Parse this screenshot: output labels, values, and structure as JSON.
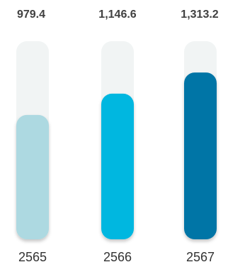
{
  "chart_data": {
    "type": "bar",
    "categories": [
      "2565",
      "2566",
      "2567"
    ],
    "values": [
      979.4,
      1146.6,
      1313.2
    ],
    "value_labels": [
      "979.4",
      "1,146.6",
      "1,313.2"
    ],
    "colors": [
      "#add9e1",
      "#00b7e0",
      "#0074a6"
    ],
    "track_color": "#f1f4f4",
    "title": "",
    "xlabel": "",
    "ylabel": "",
    "ylim": [
      0,
      1560
    ],
    "grid": false,
    "legend": "none"
  }
}
